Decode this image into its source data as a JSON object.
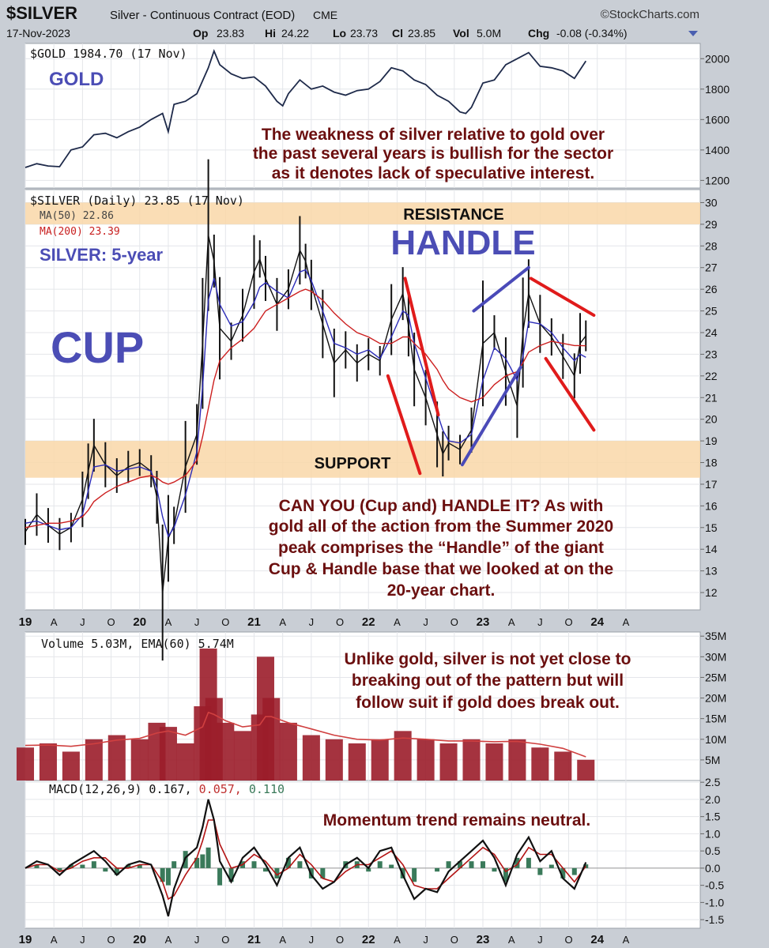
{
  "header": {
    "symbol": "$SILVER",
    "description": "Silver - Continuous Contract (EOD)",
    "exchange": "CME",
    "brand": "©StockCharts.com",
    "date": "17-Nov-2023",
    "op_label": "Op",
    "op": "23.83",
    "hi_label": "Hi",
    "hi": "24.22",
    "lo_label": "Lo",
    "lo": "23.73",
    "cl_label": "Cl",
    "cl": "23.85",
    "vol_label": "Vol",
    "vol": "5.0M",
    "chg_label": "Chg",
    "chg": "-0.08 (-0.34%)"
  },
  "x_ticks": [
    "19",
    "A",
    "J",
    "O",
    "20",
    "A",
    "J",
    "O",
    "21",
    "A",
    "J",
    "O",
    "22",
    "A",
    "J",
    "O",
    "23",
    "A",
    "J",
    "O",
    "24",
    "A"
  ],
  "chart_data": [
    {
      "type": "line",
      "name": "gold",
      "legend": "$GOLD 1984.70 (17 Nov)",
      "big_label": "GOLD",
      "annotation": [
        "The weakness of silver relative to gold over",
        "the past several years is bullish for the sector",
        "as it denotes lack of speculative interest."
      ],
      "yticks": [
        "2000",
        "1800",
        "1600",
        "1400",
        "1200"
      ],
      "ylim": [
        1150,
        2100
      ],
      "x": [
        2019.0,
        2019.1,
        2019.2,
        2019.3,
        2019.4,
        2019.5,
        2019.6,
        2019.7,
        2019.8,
        2019.9,
        2020.0,
        2020.1,
        2020.2,
        2020.25,
        2020.3,
        2020.4,
        2020.5,
        2020.6,
        2020.65,
        2020.7,
        2020.8,
        2020.9,
        2021.0,
        2021.1,
        2021.2,
        2021.25,
        2021.3,
        2021.4,
        2021.5,
        2021.6,
        2021.7,
        2021.8,
        2021.9,
        2022.0,
        2022.1,
        2022.2,
        2022.3,
        2022.4,
        2022.5,
        2022.6,
        2022.7,
        2022.8,
        2022.85,
        2022.9,
        2023.0,
        2023.1,
        2023.2,
        2023.3,
        2023.4,
        2023.5,
        2023.6,
        2023.7,
        2023.8,
        2023.9
      ],
      "values": [
        1285,
        1310,
        1295,
        1290,
        1400,
        1420,
        1500,
        1510,
        1480,
        1520,
        1550,
        1600,
        1640,
        1520,
        1700,
        1720,
        1770,
        1940,
        2050,
        1960,
        1900,
        1870,
        1880,
        1820,
        1720,
        1690,
        1770,
        1860,
        1800,
        1820,
        1780,
        1760,
        1790,
        1800,
        1850,
        1940,
        1920,
        1860,
        1830,
        1760,
        1720,
        1650,
        1640,
        1680,
        1840,
        1860,
        1960,
        2000,
        2040,
        1950,
        1940,
        1920,
        1870,
        1985
      ]
    },
    {
      "type": "line",
      "name": "silver",
      "legend": "$SILVER (Daily) 23.85 (17 Nov)",
      "ma50_legend": "MA(50) 22.86",
      "ma200_legend": "MA(200) 23.39",
      "subtitle": "SILVER: 5-year",
      "cup_label": "CUP",
      "handle_label": "HANDLE",
      "resistance_label": "RESISTANCE",
      "support_label": "SUPPORT",
      "annotation": [
        "CAN YOU (Cup and) HANDLE IT? As with",
        "gold all of the action from the Summer 2020",
        "peak comprises the “Handle” of the giant",
        "Cup & Handle base that we looked at on the",
        "20-year chart."
      ],
      "resistance_zone": [
        29.0,
        30.0
      ],
      "support_zone": [
        17.3,
        19.0
      ],
      "yticks": [
        "30",
        "29",
        "28",
        "27",
        "26",
        "25",
        "24",
        "23",
        "22",
        "21",
        "20",
        "19",
        "18",
        "17",
        "16",
        "15",
        "14",
        "13",
        "12"
      ],
      "ylim": [
        11.2,
        30.6
      ],
      "x": [
        2019.0,
        2019.1,
        2019.2,
        2019.3,
        2019.4,
        2019.5,
        2019.55,
        2019.6,
        2019.7,
        2019.8,
        2019.9,
        2020.0,
        2020.1,
        2020.15,
        2020.2,
        2020.25,
        2020.3,
        2020.4,
        2020.5,
        2020.55,
        2020.6,
        2020.65,
        2020.7,
        2020.8,
        2020.9,
        2021.0,
        2021.05,
        2021.1,
        2021.2,
        2021.3,
        2021.4,
        2021.45,
        2021.5,
        2021.6,
        2021.7,
        2021.8,
        2021.9,
        2022.0,
        2022.1,
        2022.2,
        2022.3,
        2022.35,
        2022.4,
        2022.5,
        2022.6,
        2022.65,
        2022.7,
        2022.8,
        2022.9,
        2023.0,
        2023.1,
        2023.2,
        2023.3,
        2023.35,
        2023.4,
        2023.5,
        2023.6,
        2023.7,
        2023.8,
        2023.85,
        2023.9
      ],
      "values": [
        14.8,
        15.6,
        15.1,
        14.7,
        15.0,
        16.3,
        17.6,
        18.8,
        17.9,
        17.4,
        17.8,
        18.0,
        17.6,
        16.4,
        12.0,
        14.5,
        15.1,
        17.8,
        19.3,
        23.5,
        28.5,
        27.3,
        24.2,
        23.6,
        24.8,
        26.8,
        27.4,
        26.5,
        25.3,
        26.0,
        27.8,
        27.3,
        26.2,
        24.4,
        22.6,
        23.2,
        22.6,
        23.0,
        22.7,
        24.6,
        25.8,
        24.3,
        22.3,
        21.0,
        19.3,
        18.4,
        18.9,
        18.6,
        19.5,
        23.5,
        24.0,
        22.2,
        20.6,
        24.0,
        25.8,
        24.4,
        23.8,
        22.9,
        22.0,
        23.5,
        23.85
      ],
      "ma50": [
        15.2,
        15.3,
        15.1,
        14.9,
        15.0,
        15.6,
        16.7,
        17.8,
        17.9,
        17.6,
        17.7,
        17.8,
        17.6,
        16.8,
        15.5,
        14.6,
        15.0,
        16.5,
        18.5,
        21.5,
        25.5,
        26.5,
        25.3,
        24.3,
        24.5,
        25.4,
        26.1,
        26.3,
        25.9,
        25.6,
        26.8,
        26.9,
        26.4,
        25.0,
        23.5,
        23.3,
        23.0,
        23.2,
        22.8,
        23.8,
        25.0,
        24.8,
        23.5,
        21.9,
        20.3,
        19.5,
        19.0,
        18.9,
        19.3,
        21.8,
        23.3,
        22.8,
        21.8,
        22.9,
        24.5,
        24.4,
        24.0,
        23.3,
        22.7,
        23.0,
        22.86
      ],
      "ma200": [
        15.0,
        15.1,
        15.2,
        15.2,
        15.3,
        15.5,
        15.8,
        16.2,
        16.6,
        16.9,
        17.1,
        17.3,
        17.4,
        17.3,
        17.1,
        17.0,
        17.1,
        17.4,
        18.1,
        19.2,
        20.5,
        21.8,
        22.7,
        23.3,
        23.7,
        24.2,
        24.6,
        25.0,
        25.3,
        25.6,
        25.9,
        26.0,
        25.9,
        25.5,
        24.9,
        24.4,
        24.0,
        23.8,
        23.5,
        23.5,
        23.8,
        23.8,
        23.5,
        23.0,
        22.3,
        21.8,
        21.4,
        21.0,
        20.8,
        21.0,
        21.6,
        22.0,
        22.2,
        22.6,
        23.1,
        23.4,
        23.6,
        23.5,
        23.4,
        23.4,
        23.39
      ],
      "colors": {
        "price": "#111111",
        "ma50": "#2b2bb8",
        "ma200": "#cc1f1f",
        "zone": "#f9d7a8",
        "label_blue": "#4b4db5",
        "annotation": "#6b0f0f"
      }
    },
    {
      "type": "bar",
      "name": "volume",
      "legend": "Volume 5.03M, EMA(60) 5.74M",
      "annotation": [
        "Unlike gold, silver is not yet close to",
        "breaking out of the pattern but will",
        "follow suit if gold does break out."
      ],
      "yticks": [
        "35M",
        "30M",
        "25M",
        "20M",
        "15M",
        "10M",
        "5M"
      ],
      "ylim": [
        0,
        36
      ],
      "x": [
        2019.0,
        2019.2,
        2019.4,
        2019.6,
        2019.8,
        2020.0,
        2020.15,
        2020.25,
        2020.4,
        2020.55,
        2020.6,
        2020.65,
        2020.75,
        2020.9,
        2021.05,
        2021.1,
        2021.15,
        2021.3,
        2021.5,
        2021.7,
        2021.9,
        2022.1,
        2022.3,
        2022.5,
        2022.7,
        2022.9,
        2023.1,
        2023.3,
        2023.5,
        2023.7,
        2023.9
      ],
      "values": [
        8,
        9,
        7,
        10,
        11,
        10,
        14,
        13,
        9,
        18,
        32,
        20,
        14,
        12,
        16,
        30,
        20,
        14,
        11,
        10,
        9,
        10,
        12,
        10,
        9,
        10,
        9,
        10,
        8,
        7,
        5.03
      ],
      "ema": [
        8.5,
        8.6,
        8.3,
        8.9,
        9.8,
        10.2,
        11.5,
        12.0,
        11.0,
        13.0,
        16.5,
        16.0,
        14.5,
        13.0,
        13.5,
        15.5,
        15.5,
        14.0,
        12.5,
        11.0,
        10.0,
        9.8,
        10.3,
        10.0,
        9.6,
        9.6,
        9.4,
        9.5,
        8.8,
        7.8,
        5.74
      ]
    },
    {
      "type": "line",
      "name": "macd",
      "legend_main": "MACD(12,26,9) 0.167,",
      "legend_signal": "0.057,",
      "legend_hist": "0.110",
      "annotation": "Momentum trend remains neutral.",
      "yticks": [
        "2.5",
        "2.0",
        "1.5",
        "1.0",
        "0.5",
        "0.0",
        "-0.5",
        "-1.0",
        "-1.5"
      ],
      "ylim": [
        -1.75,
        2.55
      ],
      "x": [
        2019.0,
        2019.1,
        2019.2,
        2019.3,
        2019.4,
        2019.5,
        2019.6,
        2019.7,
        2019.8,
        2019.9,
        2020.0,
        2020.1,
        2020.2,
        2020.25,
        2020.3,
        2020.4,
        2020.5,
        2020.55,
        2020.6,
        2020.65,
        2020.7,
        2020.8,
        2020.9,
        2021.0,
        2021.1,
        2021.2,
        2021.3,
        2021.4,
        2021.5,
        2021.6,
        2021.7,
        2021.8,
        2021.9,
        2022.0,
        2022.1,
        2022.2,
        2022.3,
        2022.4,
        2022.5,
        2022.6,
        2022.7,
        2022.8,
        2022.9,
        2023.0,
        2023.1,
        2023.2,
        2023.3,
        2023.4,
        2023.5,
        2023.6,
        2023.7,
        2023.8,
        2023.9
      ],
      "values": [
        0.0,
        0.2,
        0.1,
        -0.2,
        0.1,
        0.3,
        0.5,
        0.2,
        -0.2,
        0.1,
        0.2,
        0.1,
        -0.8,
        -1.4,
        -0.6,
        0.3,
        0.6,
        1.2,
        2.0,
        1.4,
        0.2,
        -0.4,
        0.3,
        0.6,
        0.1,
        -0.5,
        0.3,
        0.6,
        -0.2,
        -0.6,
        -0.4,
        0.1,
        0.3,
        0.0,
        0.5,
        0.6,
        -0.2,
        -0.9,
        -0.6,
        -0.7,
        -0.1,
        0.2,
        0.5,
        0.8,
        0.3,
        -0.5,
        0.4,
        0.9,
        0.2,
        0.5,
        -0.3,
        -0.6,
        0.167
      ],
      "signal": [
        0.0,
        0.1,
        0.1,
        -0.1,
        0.0,
        0.2,
        0.3,
        0.3,
        0.0,
        0.0,
        0.1,
        0.1,
        -0.4,
        -0.9,
        -0.8,
        -0.2,
        0.3,
        0.8,
        1.4,
        1.4,
        0.7,
        0.0,
        0.1,
        0.4,
        0.2,
        -0.2,
        0.0,
        0.4,
        0.1,
        -0.3,
        -0.4,
        -0.1,
        0.1,
        0.1,
        0.3,
        0.5,
        0.1,
        -0.5,
        -0.6,
        -0.6,
        -0.3,
        0.0,
        0.3,
        0.6,
        0.4,
        -0.1,
        0.1,
        0.6,
        0.4,
        0.4,
        0.0,
        -0.4,
        0.057
      ],
      "colors": {
        "macd": "#111111",
        "signal": "#b31414",
        "hist": "#3a7a5a"
      }
    }
  ]
}
